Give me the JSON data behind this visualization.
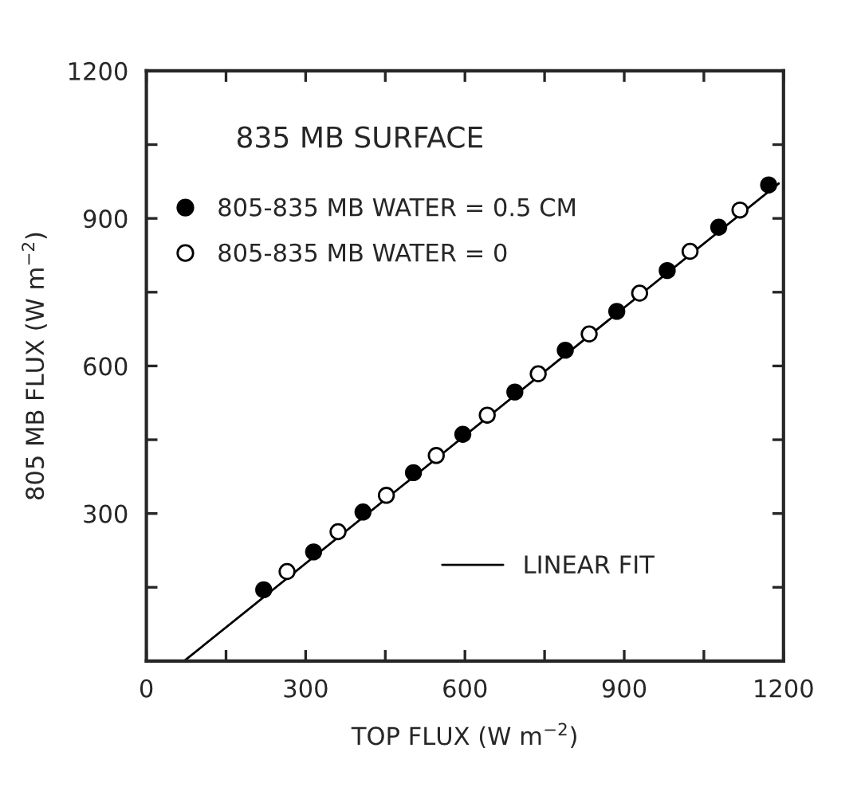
{
  "chart_data": {
    "type": "scatter",
    "xlabel": "TOP FLUX (W m$^{−2}$)",
    "ylabel": "805 MB FLUX (W m$^{−2}$)",
    "annotations": [
      "835 MB SURFACE"
    ],
    "xlim": [
      0,
      1200
    ],
    "ylim": [
      0,
      1200
    ],
    "xticks": [
      0,
      {
        "value": 150,
        "label": null
      },
      300,
      {
        "value": 450,
        "label": null
      },
      600,
      {
        "value": 750,
        "label": null
      },
      900,
      {
        "value": 1050,
        "label": null
      },
      1200
    ],
    "yticks": [
      {
        "value": 0,
        "label": null
      },
      {
        "value": 150,
        "label": null
      },
      300,
      {
        "value": 450,
        "label": null
      },
      600,
      {
        "value": 750,
        "label": null
      },
      900,
      {
        "value": 1050,
        "label": null
      },
      1200
    ],
    "grid": false,
    "legend": "left",
    "series": [
      {
        "name": "805-835 MB WATER = 0.5 CM",
        "color": "#000000",
        "x": [
          221,
          315,
          408,
          503,
          596,
          694,
          789,
          886,
          981,
          1078,
          1172
        ],
        "values": [
          145,
          222,
          303,
          383,
          461,
          547,
          632,
          711,
          794,
          882,
          968
        ],
        "marker": "circle"
      },
      {
        "name": "805-835 MB WATER = 0",
        "color": "#ffffff",
        "x": [
          265,
          361,
          452,
          546,
          642,
          738,
          834,
          929,
          1024,
          1118
        ],
        "values": [
          182,
          263,
          337,
          418,
          500,
          584,
          665,
          748,
          833,
          917
        ],
        "marker": "circle"
      },
      {
        "name": "LINEAR FIT",
        "type": "line",
        "color": "#000000",
        "x": [
          71,
          1191
        ],
        "values": [
          0,
          971
        ],
        "marker": "none"
      }
    ]
  }
}
